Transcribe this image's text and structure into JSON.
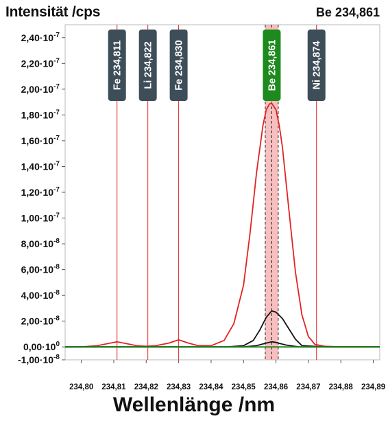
{
  "chart_data": {
    "type": "line",
    "title": "",
    "ylabel": "Intensität /cps",
    "xlabel": "Wellenlänge /nm",
    "element_label": "Be 234,861",
    "xlim": [
      234.795,
      234.892
    ],
    "ylim": [
      -1e-08,
      2.5e-07
    ],
    "x_ticks": [
      {
        "value": 234.8,
        "label": "234,80"
      },
      {
        "value": 234.81,
        "label": "234,81"
      },
      {
        "value": 234.82,
        "label": "234,82"
      },
      {
        "value": 234.83,
        "label": "234,83"
      },
      {
        "value": 234.84,
        "label": "234,84"
      },
      {
        "value": 234.85,
        "label": "234,85"
      },
      {
        "value": 234.86,
        "label": "234,86"
      },
      {
        "value": 234.87,
        "label": "234,87"
      },
      {
        "value": 234.88,
        "label": "234,88"
      },
      {
        "value": 234.89,
        "label": "234,89"
      }
    ],
    "y_ticks": [
      {
        "value": 2.4e-07,
        "mantissa": "2,40",
        "exponent": "-7"
      },
      {
        "value": 2.2e-07,
        "mantissa": "2,20",
        "exponent": "-7"
      },
      {
        "value": 2e-07,
        "mantissa": "2,00",
        "exponent": "-7"
      },
      {
        "value": 1.8e-07,
        "mantissa": "1,80",
        "exponent": "-7"
      },
      {
        "value": 1.6e-07,
        "mantissa": "1,60",
        "exponent": "-7"
      },
      {
        "value": 1.4e-07,
        "mantissa": "1,40",
        "exponent": "-7"
      },
      {
        "value": 1.2e-07,
        "mantissa": "1,20",
        "exponent": "-7"
      },
      {
        "value": 1e-07,
        "mantissa": "1,00",
        "exponent": "-7"
      },
      {
        "value": 8e-08,
        "mantissa": "8,00",
        "exponent": "-8"
      },
      {
        "value": 6e-08,
        "mantissa": "6,00",
        "exponent": "-8"
      },
      {
        "value": 4e-08,
        "mantissa": "4,00",
        "exponent": "-8"
      },
      {
        "value": 2e-08,
        "mantissa": "2,00",
        "exponent": "-8"
      },
      {
        "value": 0.0,
        "mantissa": "0,00",
        "exponent": "0"
      },
      {
        "value": -1e-08,
        "mantissa": "-1,00",
        "exponent": "-8"
      }
    ],
    "reference_lines": [
      {
        "label": "Fe 234,811",
        "x": 234.811,
        "highlight": false
      },
      {
        "label": "Li 234,822",
        "x": 234.8205,
        "highlight": false
      },
      {
        "label": "Fe 234,830",
        "x": 234.83,
        "highlight": false
      },
      {
        "label": "Be 234,861",
        "x": 234.8587,
        "highlight": true
      },
      {
        "label": "Ni 234,874",
        "x": 234.8725,
        "highlight": false
      }
    ],
    "integration_window": {
      "from": 234.8567,
      "to": 234.8607,
      "dashed": [
        234.8567,
        234.8587,
        234.8607
      ]
    },
    "series": [
      {
        "color": "#e32222",
        "x": [
          234.795,
          234.8,
          234.805,
          234.808,
          234.811,
          234.814,
          234.817,
          234.82,
          234.823,
          234.827,
          234.83,
          234.833,
          234.836,
          234.84,
          234.844,
          234.847,
          234.85,
          234.852,
          234.854,
          234.856,
          234.857,
          234.858,
          234.8587,
          234.86,
          234.861,
          234.862,
          234.864,
          234.866,
          234.868,
          234.87,
          234.872,
          234.875,
          234.88,
          234.886,
          234.892
        ],
        "y": [
          0.0,
          0.0,
          1e-09,
          2.5e-09,
          4e-09,
          2.5e-09,
          1e-09,
          5e-10,
          1e-09,
          3e-09,
          5.5e-09,
          3e-09,
          1e-09,
          1e-09,
          5e-09,
          1.8e-08,
          4.8e-08,
          8.8e-08,
          1.35e-07,
          1.72e-07,
          1.84e-07,
          1.885e-07,
          1.89e-07,
          1.84e-07,
          1.72e-07,
          1.55e-07,
          1.06e-07,
          5.8e-08,
          2.5e-08,
          8e-09,
          2e-09,
          5e-10,
          0.0,
          0.0,
          0.0
        ]
      },
      {
        "color": "#111111",
        "x": [
          234.795,
          234.845,
          234.85,
          234.853,
          234.855,
          234.857,
          234.8587,
          234.86,
          234.862,
          234.864,
          234.866,
          234.868,
          234.875,
          234.892
        ],
        "y": [
          0.0,
          0.0,
          1e-09,
          5e-09,
          1.3e-08,
          2.3e-08,
          2.8e-08,
          2.7e-08,
          2.2e-08,
          1.4e-08,
          6e-09,
          1e-09,
          0.0,
          0.0
        ]
      },
      {
        "color": "#111111",
        "x": [
          234.795,
          234.85,
          234.854,
          234.857,
          234.8587,
          234.86,
          234.863,
          234.867,
          234.892
        ],
        "y": [
          0.0,
          0.0,
          1e-09,
          3e-09,
          4e-09,
          3.5e-09,
          1.5e-09,
          0.0,
          0.0
        ]
      },
      {
        "color": "#1f8a1f",
        "x": [
          234.795,
          234.892
        ],
        "y": [
          0.0,
          0.0
        ]
      }
    ]
  }
}
